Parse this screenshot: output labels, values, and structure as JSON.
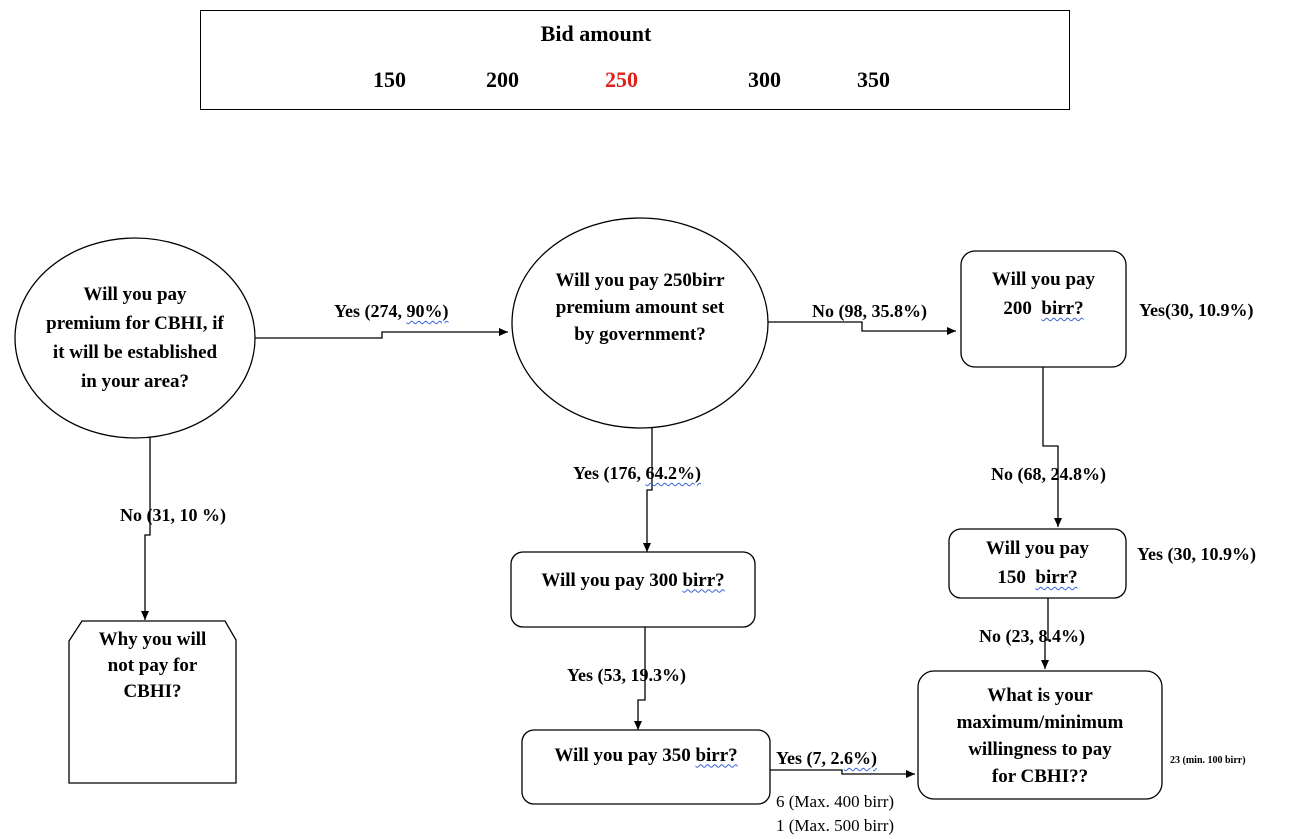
{
  "bid": {
    "title": "Bid amount",
    "amounts": [
      "150",
      "200",
      "250",
      "300",
      "350"
    ],
    "highlight_color": "#e0201b"
  },
  "nodes": {
    "q_pay_premium": "Will you pay premium for CBHI, if it will be established in your area?",
    "q_why_not": "Why you will not pay for CBHI?",
    "q_250": "Will you pay 250birr premium amount set by government?",
    "q_300_prefix": "Will you pay 300 ",
    "q_300_suffix": "birr?",
    "q_350_prefix": "Will you pay 350 ",
    "q_350_suffix": "birr?",
    "q_200_line1": "Will you pay",
    "q_200_prefix": "200 ",
    "q_200_suffix": "birr?",
    "q_150_line1": "Will you pay",
    "q_150_prefix": "150 ",
    "q_150_suffix": "birr?",
    "q_max_min": "What is your maximum/minimum willingness to pay for CBHI??"
  },
  "edges": {
    "yes_274_prefix": "Yes (274, ",
    "yes_274_suffix": "90%)",
    "no_31": "No (31, 10 %)",
    "no_98": "No (98, 35.8%)",
    "yes_176_prefix": "Yes (176, ",
    "yes_176_suffix": "64.2%)",
    "yes_53": "Yes (53, 19.3%)",
    "yes_7_prefix": "Yes (7, 2.",
    "yes_7_suffix": "6%)",
    "yes_30_200": "Yes(30, 10.9%)",
    "no_68": "No (68, 24.8%)",
    "yes_30_150": "Yes (30, 10.9%)",
    "no_23": "No (23, 8.4%)",
    "min_23": "23 (min. 100 birr)",
    "max_400": "6 (Max. 400 birr)",
    "max_500": "1 (Max. 500 birr)"
  }
}
